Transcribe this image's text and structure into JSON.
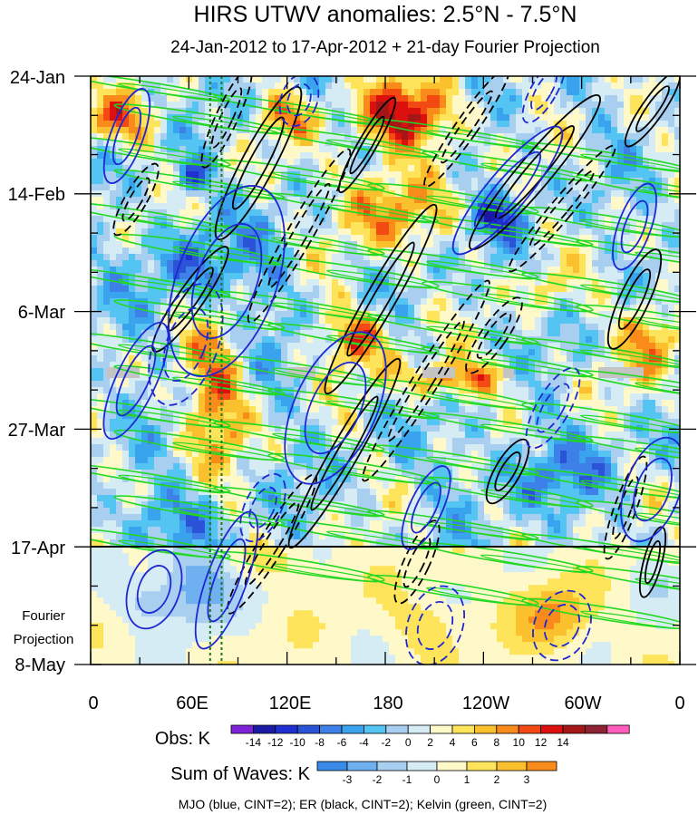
{
  "chart_data": {
    "type": "heatmap",
    "title": "HIRS UTWV anomalies: 2.5°N - 7.5°N",
    "subtitle": "24-Jan-2012 to 17-Apr-2012 + 21-day Fourier Projection",
    "y_tick_labels": [
      "24-Jan",
      "14-Feb",
      "6-Mar",
      "27-Mar",
      "17-Apr",
      "8-May"
    ],
    "fourier_label_line1": "Fourier",
    "fourier_label_line2": "Projection",
    "x_tick_labels": [
      "0",
      "60E",
      "120E",
      "180",
      "120W",
      "60W",
      "0"
    ],
    "x_range_deg": [
      0,
      360
    ],
    "time_range_days": [
      0,
      105
    ],
    "projection_start_day": 84,
    "obs_colorbar": {
      "label": "Obs: K",
      "ticks": [
        "-14",
        "-12",
        "-10",
        "-8",
        "-6",
        "-4",
        "-2",
        "0",
        "2",
        "4",
        "6",
        "8",
        "10",
        "12",
        "14"
      ],
      "colors": [
        "#7e22d8",
        "#1a1aa6",
        "#1f2fd0",
        "#2a53d8",
        "#3d80e8",
        "#3aa3ee",
        "#54c4f2",
        "#a9cff0",
        "#d6ecf5",
        "#fff8c8",
        "#fde45a",
        "#fbc02d",
        "#f88b1a",
        "#f24a12",
        "#dd1010",
        "#a51616",
        "#8e2230",
        "#ff5cbc"
      ]
    },
    "waves_colorbar": {
      "label": "Sum of Waves: K",
      "ticks": [
        "-3",
        "-2",
        "-1",
        "0",
        "1",
        "2",
        "3"
      ],
      "colors": [
        "#3a8be8",
        "#6fb0f0",
        "#a9cff0",
        "#d6ecf5",
        "#fff8c8",
        "#fde45a",
        "#fbc02d",
        "#f88b1a"
      ]
    },
    "footer": "MJO (blue, CINT=2); ER (black, CINT=2); Kelvin (green, CINT=2)",
    "contour_colors": {
      "mjo": "#1e28d2",
      "er": "#000000",
      "kelvin": "#22d822",
      "marker": "#1c7a1c"
    }
  }
}
